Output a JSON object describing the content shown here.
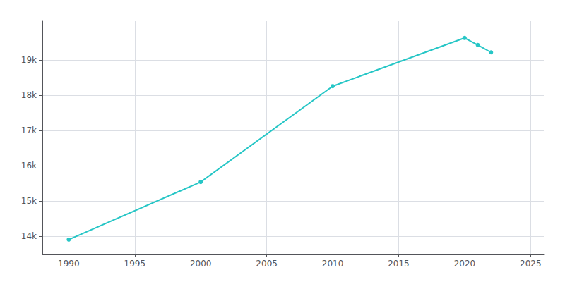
{
  "chart_data": {
    "type": "line",
    "x": [
      1990,
      2000,
      2010,
      2020,
      2021,
      2022
    ],
    "values": [
      13904,
      15538,
      18256,
      19624,
      19423,
      19215
    ],
    "color": "#26c6c6",
    "marker": "circle",
    "xlim": [
      1988,
      2026
    ],
    "xticks": [
      1990,
      1995,
      2000,
      2005,
      2010,
      2015,
      2020,
      2025
    ],
    "ylim": [
      13500,
      20100
    ],
    "yticks": [
      {
        "value": 14000,
        "label": "14k"
      },
      {
        "value": 15000,
        "label": "15k"
      },
      {
        "value": 16000,
        "label": "16k"
      },
      {
        "value": 17000,
        "label": "17k"
      },
      {
        "value": 18000,
        "label": "18k"
      },
      {
        "value": 19000,
        "label": "19k"
      }
    ],
    "grid": true
  }
}
